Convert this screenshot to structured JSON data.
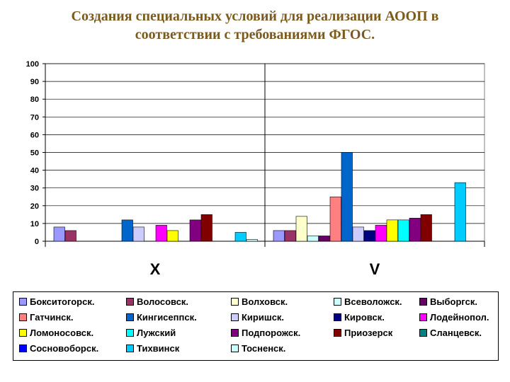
{
  "title": {
    "line1": "Создания специальных условий для реализации АООП в",
    "line2": "соответствии с  требованиями ФГОС."
  },
  "chart_data": {
    "type": "bar",
    "categories": [
      "X",
      "V"
    ],
    "ylim": [
      0,
      100
    ],
    "yticks": [
      0,
      10,
      20,
      30,
      40,
      50,
      60,
      70,
      80,
      90,
      100
    ],
    "grid": true,
    "legend_position": "bottom",
    "series": [
      {
        "name": "Бокситогорск.",
        "color": "#9999ff",
        "values": [
          8,
          6
        ]
      },
      {
        "name": "Волосовск.",
        "color": "#993366",
        "values": [
          6,
          6
        ]
      },
      {
        "name": "Волховск.",
        "color": "#ffffcc",
        "values": [
          0,
          14
        ]
      },
      {
        "name": "Всеволожск.",
        "color": "#ccffff",
        "values": [
          0,
          3
        ]
      },
      {
        "name": "Выборгск.",
        "color": "#660066",
        "values": [
          0,
          3
        ]
      },
      {
        "name": "Гатчинск.",
        "color": "#ff8080",
        "values": [
          0,
          25
        ]
      },
      {
        "name": "Кингисеппск.",
        "color": "#0066cc",
        "values": [
          12,
          50
        ]
      },
      {
        "name": "Киришск.",
        "color": "#ccccff",
        "values": [
          8,
          8
        ]
      },
      {
        "name": "Кировск.",
        "color": "#000080",
        "values": [
          0,
          6
        ]
      },
      {
        "name": "Лодейнопол.",
        "color": "#ff00ff",
        "values": [
          9,
          9
        ]
      },
      {
        "name": "Ломоносовск.",
        "color": "#ffff00",
        "values": [
          6,
          12
        ]
      },
      {
        "name": "Лужский",
        "color": "#00ffff",
        "values": [
          0,
          12
        ]
      },
      {
        "name": "Подпорожск.",
        "color": "#800080",
        "values": [
          12,
          13
        ]
      },
      {
        "name": "Приозерск",
        "color": "#800000",
        "values": [
          15,
          15
        ]
      },
      {
        "name": "Сланцевск.",
        "color": "#008080",
        "values": [
          0,
          0
        ]
      },
      {
        "name": "Сосновоборск.",
        "color": "#0000ff",
        "values": [
          0,
          0
        ]
      },
      {
        "name": "Тихвинск",
        "color": "#00ccff",
        "values": [
          5,
          33
        ]
      },
      {
        "name": "Тосненск.",
        "color": "#ccffff",
        "values": [
          1,
          0
        ]
      }
    ]
  }
}
